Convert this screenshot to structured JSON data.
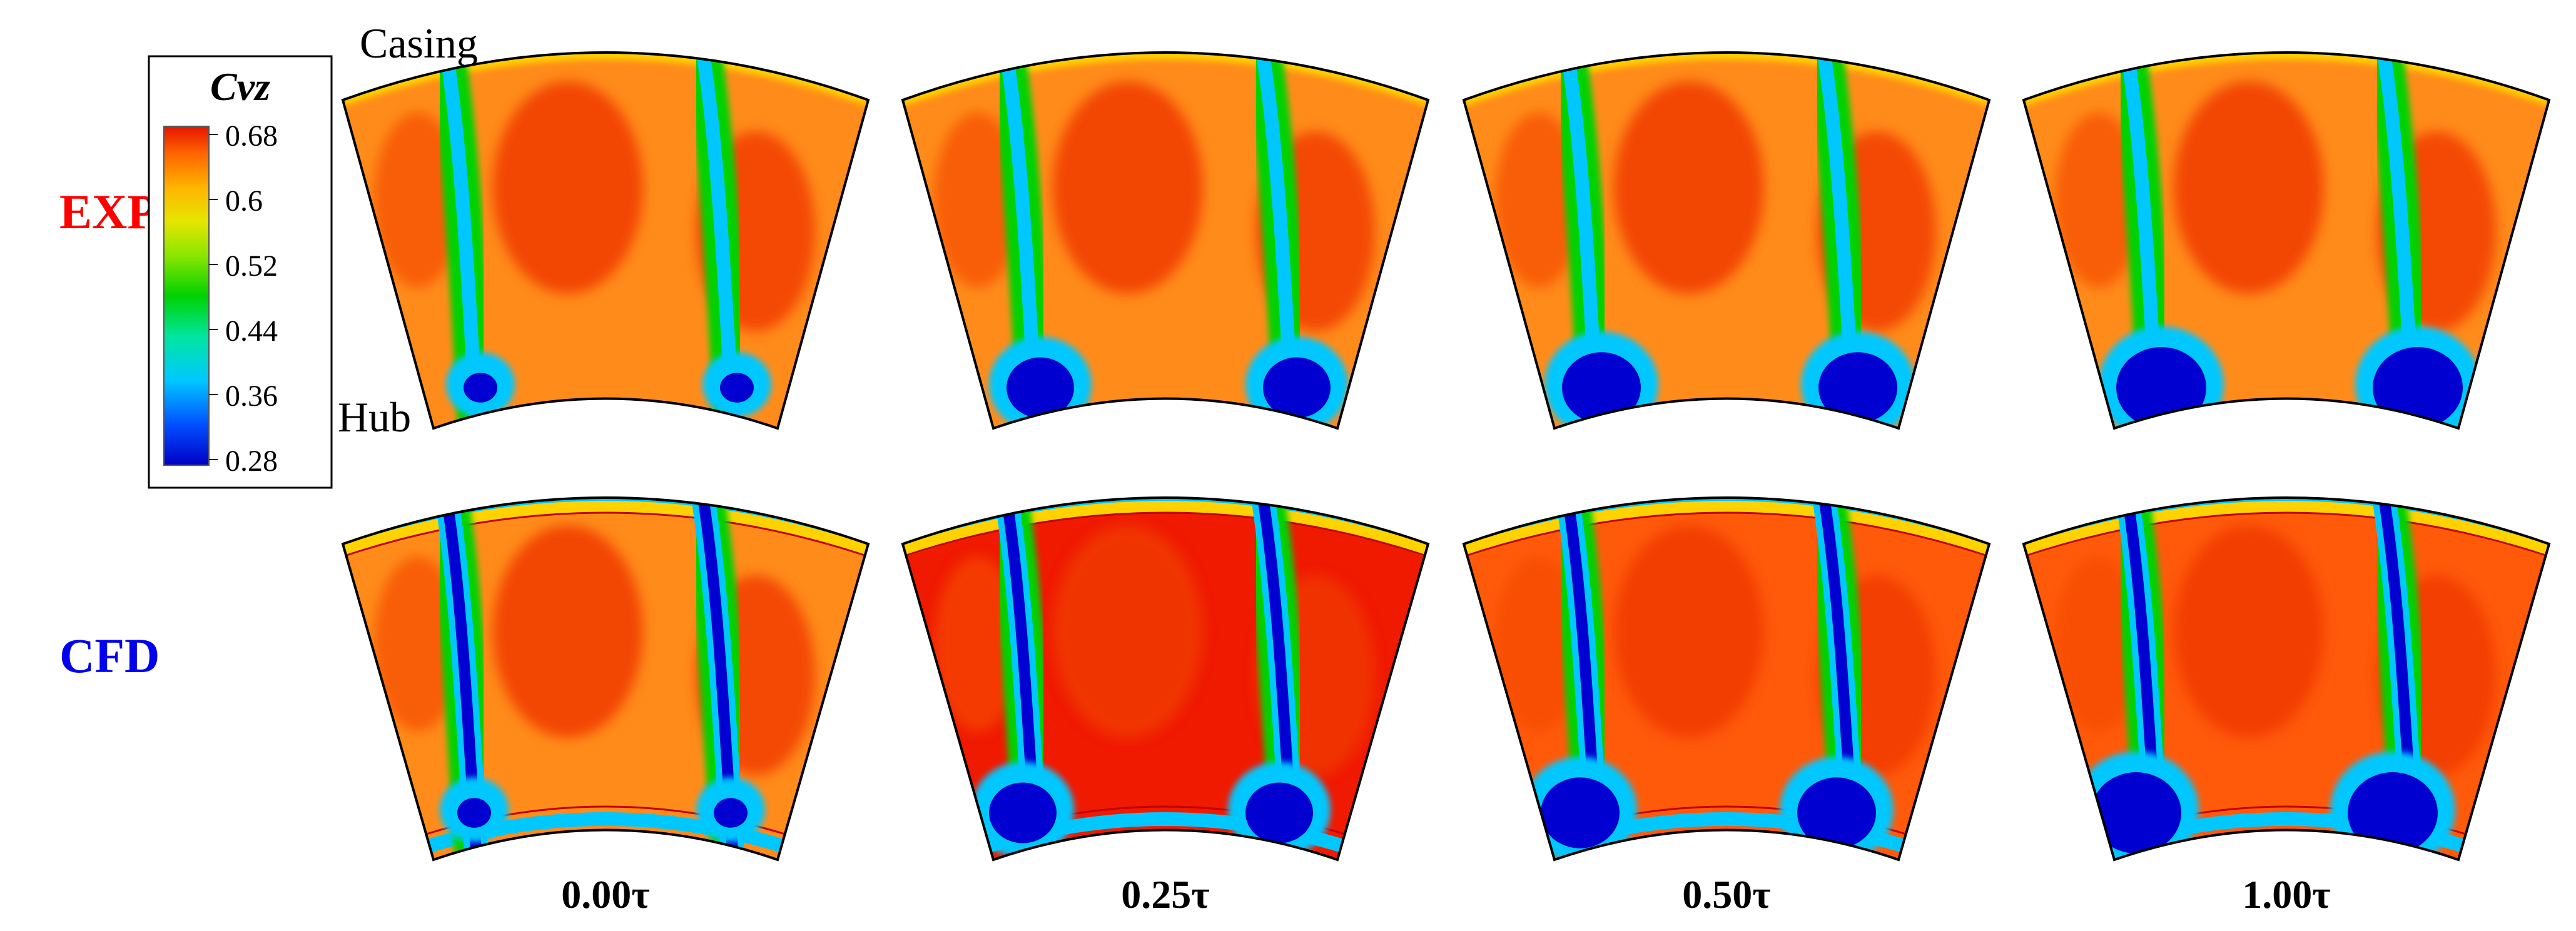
{
  "rows": [
    {
      "label": "EXP",
      "color": "#ff0000"
    },
    {
      "label": "CFD",
      "color": "#0000ee"
    }
  ],
  "annotations": {
    "casing": "Casing",
    "hub": "Hub"
  },
  "times": [
    "0.00τ",
    "0.25τ",
    "0.50τ",
    "1.00τ"
  ],
  "legend": {
    "title": "Cvz",
    "ticks": [
      "0.68",
      "0.6",
      "0.52",
      "0.44",
      "0.36",
      "0.28"
    ],
    "min": 0.28,
    "max": 0.68,
    "colors": [
      "#0000c8",
      "#0050ff",
      "#00c8ff",
      "#00e6a0",
      "#00d200",
      "#8ce600",
      "#e6e600",
      "#ffb400",
      "#ff6400",
      "#f01e00"
    ]
  },
  "field_colors": {
    "background_exp": "#ff8c1a",
    "background_cfd": [
      "#ff8c1a",
      "#f01a00",
      "#ff5a0a",
      "#ff5a0a"
    ],
    "wake": "#00d200",
    "wake_core": "#0000d0",
    "hub_blob": "#0000d0",
    "casing_band": "#ffd200"
  }
}
